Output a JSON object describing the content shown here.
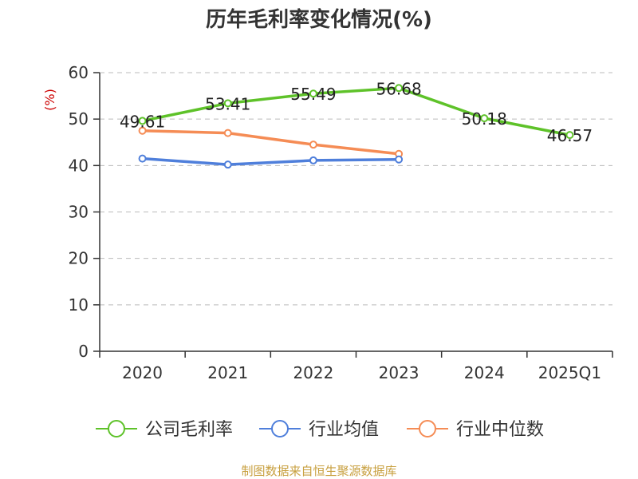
{
  "chart_data": {
    "type": "line",
    "title": "历年毛利率变化情况(%)",
    "ylabel": "(%)",
    "xlabel": "",
    "ylim": [
      0,
      60
    ],
    "yticks": [
      0,
      10,
      20,
      30,
      40,
      50,
      60
    ],
    "categories": [
      "2020",
      "2021",
      "2022",
      "2023",
      "2024",
      "2025Q1"
    ],
    "grid": true,
    "legend_position": "bottom",
    "series": [
      {
        "name": "公司毛利率",
        "color": "#5ec229",
        "values": [
          49.61,
          53.41,
          55.49,
          56.68,
          50.18,
          46.57
        ],
        "labels": [
          "49.61",
          "53.41",
          "55.49",
          "56.68",
          "50.18",
          "46.57"
        ]
      },
      {
        "name": "行业均值",
        "color": "#4f7fdb",
        "values": [
          41.5,
          40.2,
          41.1,
          41.3,
          null,
          null
        ]
      },
      {
        "name": "行业中位数",
        "color": "#f58c55",
        "values": [
          47.5,
          47.0,
          44.5,
          42.5,
          null,
          null
        ]
      }
    ]
  },
  "footer": {
    "source": "制图数据来自恒生聚源数据库"
  }
}
